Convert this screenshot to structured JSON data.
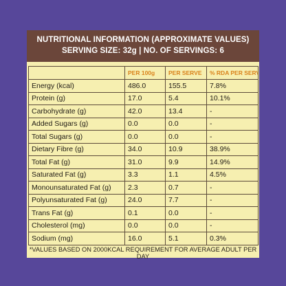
{
  "header": {
    "line1": "NUTRITIONAL INFORMATION (APPROXIMATE VALUES)",
    "line2": "SERVING SIZE: 32g  |  NO. OF SERVINGS: 6"
  },
  "table": {
    "columns": [
      "",
      "PER 100g",
      "PER SERVE",
      "% RDA PER SERVE"
    ],
    "rows": [
      [
        "Energy (kcal)",
        "486.0",
        "155.5",
        "7.8%"
      ],
      [
        "Protein (g)",
        "17.0",
        "5.4",
        "10.1%"
      ],
      [
        "Carbohydrate (g)",
        "42.0",
        "13.4",
        "-"
      ],
      [
        "Added Sugars  (g)",
        "0.0",
        "0.0",
        "-"
      ],
      [
        "Total Sugars (g)",
        "0.0",
        "0.0",
        "-"
      ],
      [
        "Dietary Fibre (g)",
        "34.0",
        "10.9",
        "38.9%"
      ],
      [
        "Total Fat (g)",
        "31.0",
        "9.9",
        "14.9%"
      ],
      [
        "Saturated Fat (g)",
        "3.3",
        "1.1",
        "4.5%"
      ],
      [
        "Monounsaturated Fat (g)",
        "2.3",
        "0.7",
        "-"
      ],
      [
        "Polyunsaturated Fat (g)",
        "24.0",
        "7.7",
        "-"
      ],
      [
        "Trans Fat (g)",
        "0.1",
        "0.0",
        "-"
      ],
      [
        "Cholesterol (mg)",
        "0.0",
        "0.0",
        "-"
      ],
      [
        "Sodium (mg)",
        "16.0",
        "5.1",
        "0.3%"
      ]
    ]
  },
  "footnote": "*VALUES BASED ON 2000KCAL REQUIREMENT FOR AVERAGE ADULT PER DAY"
}
